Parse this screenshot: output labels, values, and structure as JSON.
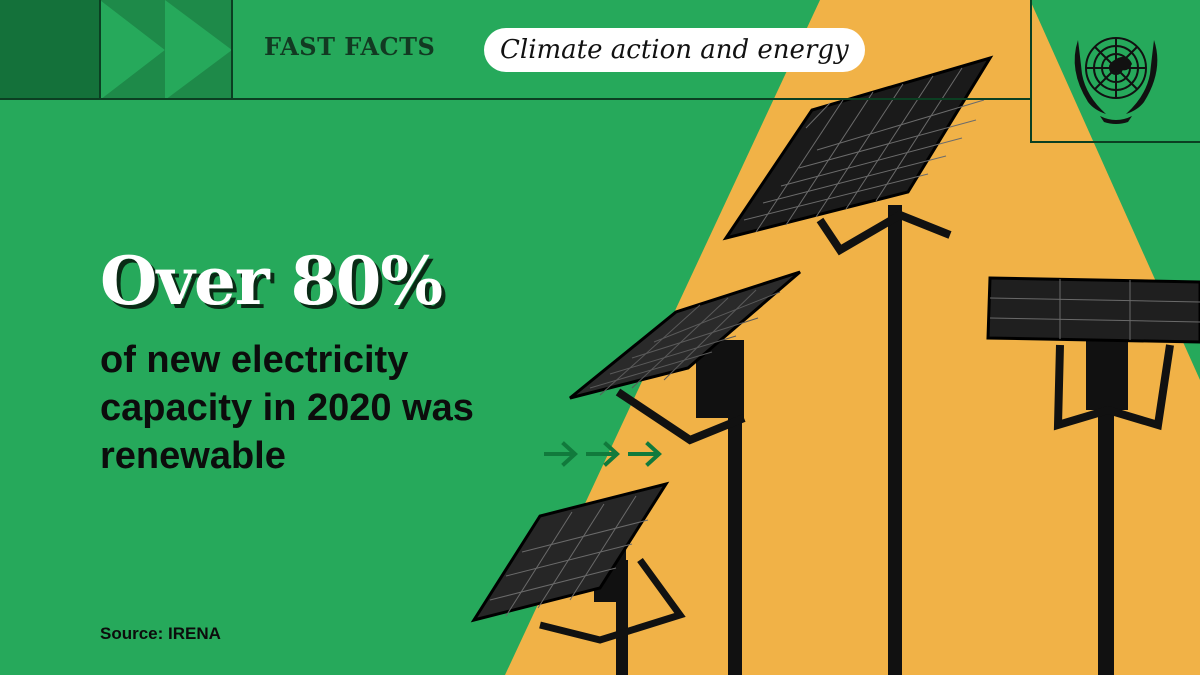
{
  "header": {
    "label": "FAST FACTS",
    "topic": "Climate action and energy"
  },
  "fact": {
    "headline": "Over 80%",
    "description": "of new electricity capacity in 2020 was renewable"
  },
  "footer": {
    "source": "Source: IRENA"
  },
  "icons": [
    "double-chevron-icon",
    "un-emblem-icon",
    "arrows-icon",
    "solar-panel-icon"
  ],
  "colors": {
    "background_green": "#26a95b",
    "dark_green": "#0b3f22",
    "accent_yellow": "#f1b247",
    "text_dark": "#0c0c0c",
    "white": "#ffffff"
  }
}
